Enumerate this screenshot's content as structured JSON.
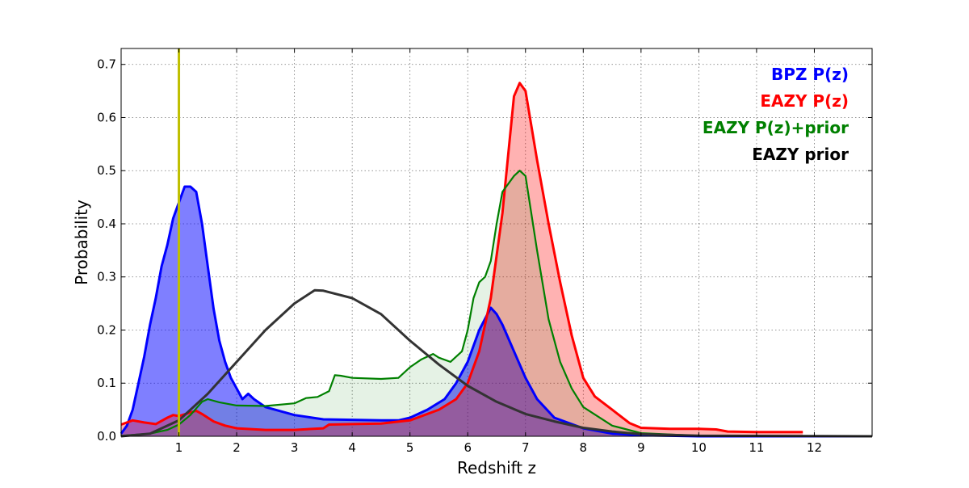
{
  "chart_data": {
    "type": "area",
    "xlabel": "Redshift z",
    "ylabel": "Probability",
    "xlim": [
      0,
      13
    ],
    "ylim": [
      0,
      0.73
    ],
    "xticks": [
      1,
      2,
      3,
      4,
      5,
      6,
      7,
      8,
      9,
      10,
      11,
      12
    ],
    "yticks": [
      0.0,
      0.1,
      0.2,
      0.3,
      0.4,
      0.5,
      0.6,
      0.7
    ],
    "ytick_labels": [
      "0.0",
      "0.1",
      "0.2",
      "0.3",
      "0.4",
      "0.5",
      "0.6",
      "0.7"
    ],
    "grid": true,
    "legend_position": "top-right",
    "reference_line": {
      "x": 1.0,
      "color": "#bfbf00"
    },
    "series": [
      {
        "name": "BPZ P(z)",
        "color": "#0000ff",
        "fill": "#0000ff",
        "fill_opacity": 0.5,
        "x": [
          0.0,
          0.1,
          0.2,
          0.3,
          0.4,
          0.5,
          0.6,
          0.7,
          0.8,
          0.9,
          1.0,
          1.1,
          1.2,
          1.3,
          1.4,
          1.5,
          1.6,
          1.7,
          1.8,
          1.9,
          2.0,
          2.1,
          2.2,
          2.3,
          2.5,
          3.0,
          3.5,
          4.0,
          4.5,
          4.8,
          5.0,
          5.3,
          5.6,
          5.8,
          6.0,
          6.2,
          6.4,
          6.5,
          6.6,
          6.8,
          7.0,
          7.2,
          7.5,
          8.0,
          8.5,
          9.0,
          10.0,
          13.0
        ],
        "y": [
          0.005,
          0.02,
          0.05,
          0.1,
          0.15,
          0.21,
          0.26,
          0.32,
          0.36,
          0.41,
          0.44,
          0.47,
          0.47,
          0.46,
          0.4,
          0.32,
          0.24,
          0.18,
          0.14,
          0.11,
          0.09,
          0.07,
          0.08,
          0.07,
          0.055,
          0.04,
          0.032,
          0.031,
          0.03,
          0.03,
          0.035,
          0.05,
          0.07,
          0.1,
          0.14,
          0.2,
          0.242,
          0.23,
          0.21,
          0.16,
          0.11,
          0.07,
          0.035,
          0.015,
          0.005,
          0.002,
          0.0,
          0.0
        ]
      },
      {
        "name": "EAZY P(z)",
        "color": "#ff0000",
        "fill": "#ff0000",
        "fill_opacity": 0.3,
        "x": [
          0.0,
          0.2,
          0.4,
          0.6,
          0.8,
          0.9,
          1.0,
          1.2,
          1.3,
          1.4,
          1.6,
          1.8,
          2.0,
          2.5,
          3.0,
          3.5,
          3.6,
          4.0,
          4.5,
          5.0,
          5.5,
          5.8,
          6.0,
          6.2,
          6.4,
          6.6,
          6.8,
          6.9,
          7.0,
          7.2,
          7.4,
          7.6,
          7.8,
          8.0,
          8.2,
          8.5,
          8.8,
          9.0,
          9.5,
          10.0,
          10.3,
          10.5,
          11.0,
          11.8
        ],
        "y": [
          0.022,
          0.03,
          0.026,
          0.023,
          0.035,
          0.04,
          0.038,
          0.045,
          0.048,
          0.042,
          0.028,
          0.02,
          0.015,
          0.012,
          0.012,
          0.015,
          0.022,
          0.023,
          0.024,
          0.03,
          0.05,
          0.07,
          0.1,
          0.16,
          0.26,
          0.42,
          0.64,
          0.665,
          0.65,
          0.52,
          0.4,
          0.29,
          0.19,
          0.11,
          0.075,
          0.05,
          0.025,
          0.016,
          0.014,
          0.014,
          0.013,
          0.009,
          0.008,
          0.008
        ]
      },
      {
        "name": "EAZY P(z)+prior",
        "color": "#008000",
        "fill": "#008000",
        "fill_opacity": 0.1,
        "x": [
          0.0,
          0.5,
          0.8,
          1.0,
          1.2,
          1.4,
          1.5,
          1.7,
          2.0,
          2.5,
          3.0,
          3.2,
          3.4,
          3.6,
          3.7,
          3.8,
          4.0,
          4.5,
          4.8,
          5.0,
          5.2,
          5.4,
          5.5,
          5.7,
          5.9,
          6.0,
          6.1,
          6.2,
          6.3,
          6.4,
          6.5,
          6.6,
          6.8,
          6.9,
          7.0,
          7.2,
          7.4,
          7.6,
          7.8,
          8.0,
          8.5,
          9.0,
          10.0,
          13.0
        ],
        "y": [
          0.001,
          0.005,
          0.012,
          0.022,
          0.04,
          0.065,
          0.07,
          0.064,
          0.058,
          0.057,
          0.062,
          0.072,
          0.074,
          0.085,
          0.115,
          0.114,
          0.11,
          0.108,
          0.11,
          0.13,
          0.145,
          0.155,
          0.148,
          0.14,
          0.16,
          0.2,
          0.26,
          0.29,
          0.3,
          0.33,
          0.4,
          0.46,
          0.49,
          0.5,
          0.49,
          0.35,
          0.22,
          0.14,
          0.09,
          0.055,
          0.02,
          0.006,
          0.001,
          0.0
        ]
      },
      {
        "name": "EAZY prior",
        "color": "#333333",
        "fill": "none",
        "fill_opacity": 0.0,
        "x": [
          0.0,
          0.5,
          1.0,
          1.5,
          2.0,
          2.5,
          3.0,
          3.35,
          3.5,
          4.0,
          4.5,
          5.0,
          5.5,
          6.0,
          6.5,
          7.0,
          7.5,
          8.0,
          8.5,
          9.0,
          10.0,
          13.0
        ],
        "y": [
          0.0,
          0.005,
          0.03,
          0.08,
          0.14,
          0.2,
          0.25,
          0.275,
          0.274,
          0.26,
          0.23,
          0.18,
          0.135,
          0.095,
          0.065,
          0.042,
          0.028,
          0.016,
          0.009,
          0.004,
          0.001,
          0.0
        ]
      }
    ]
  }
}
